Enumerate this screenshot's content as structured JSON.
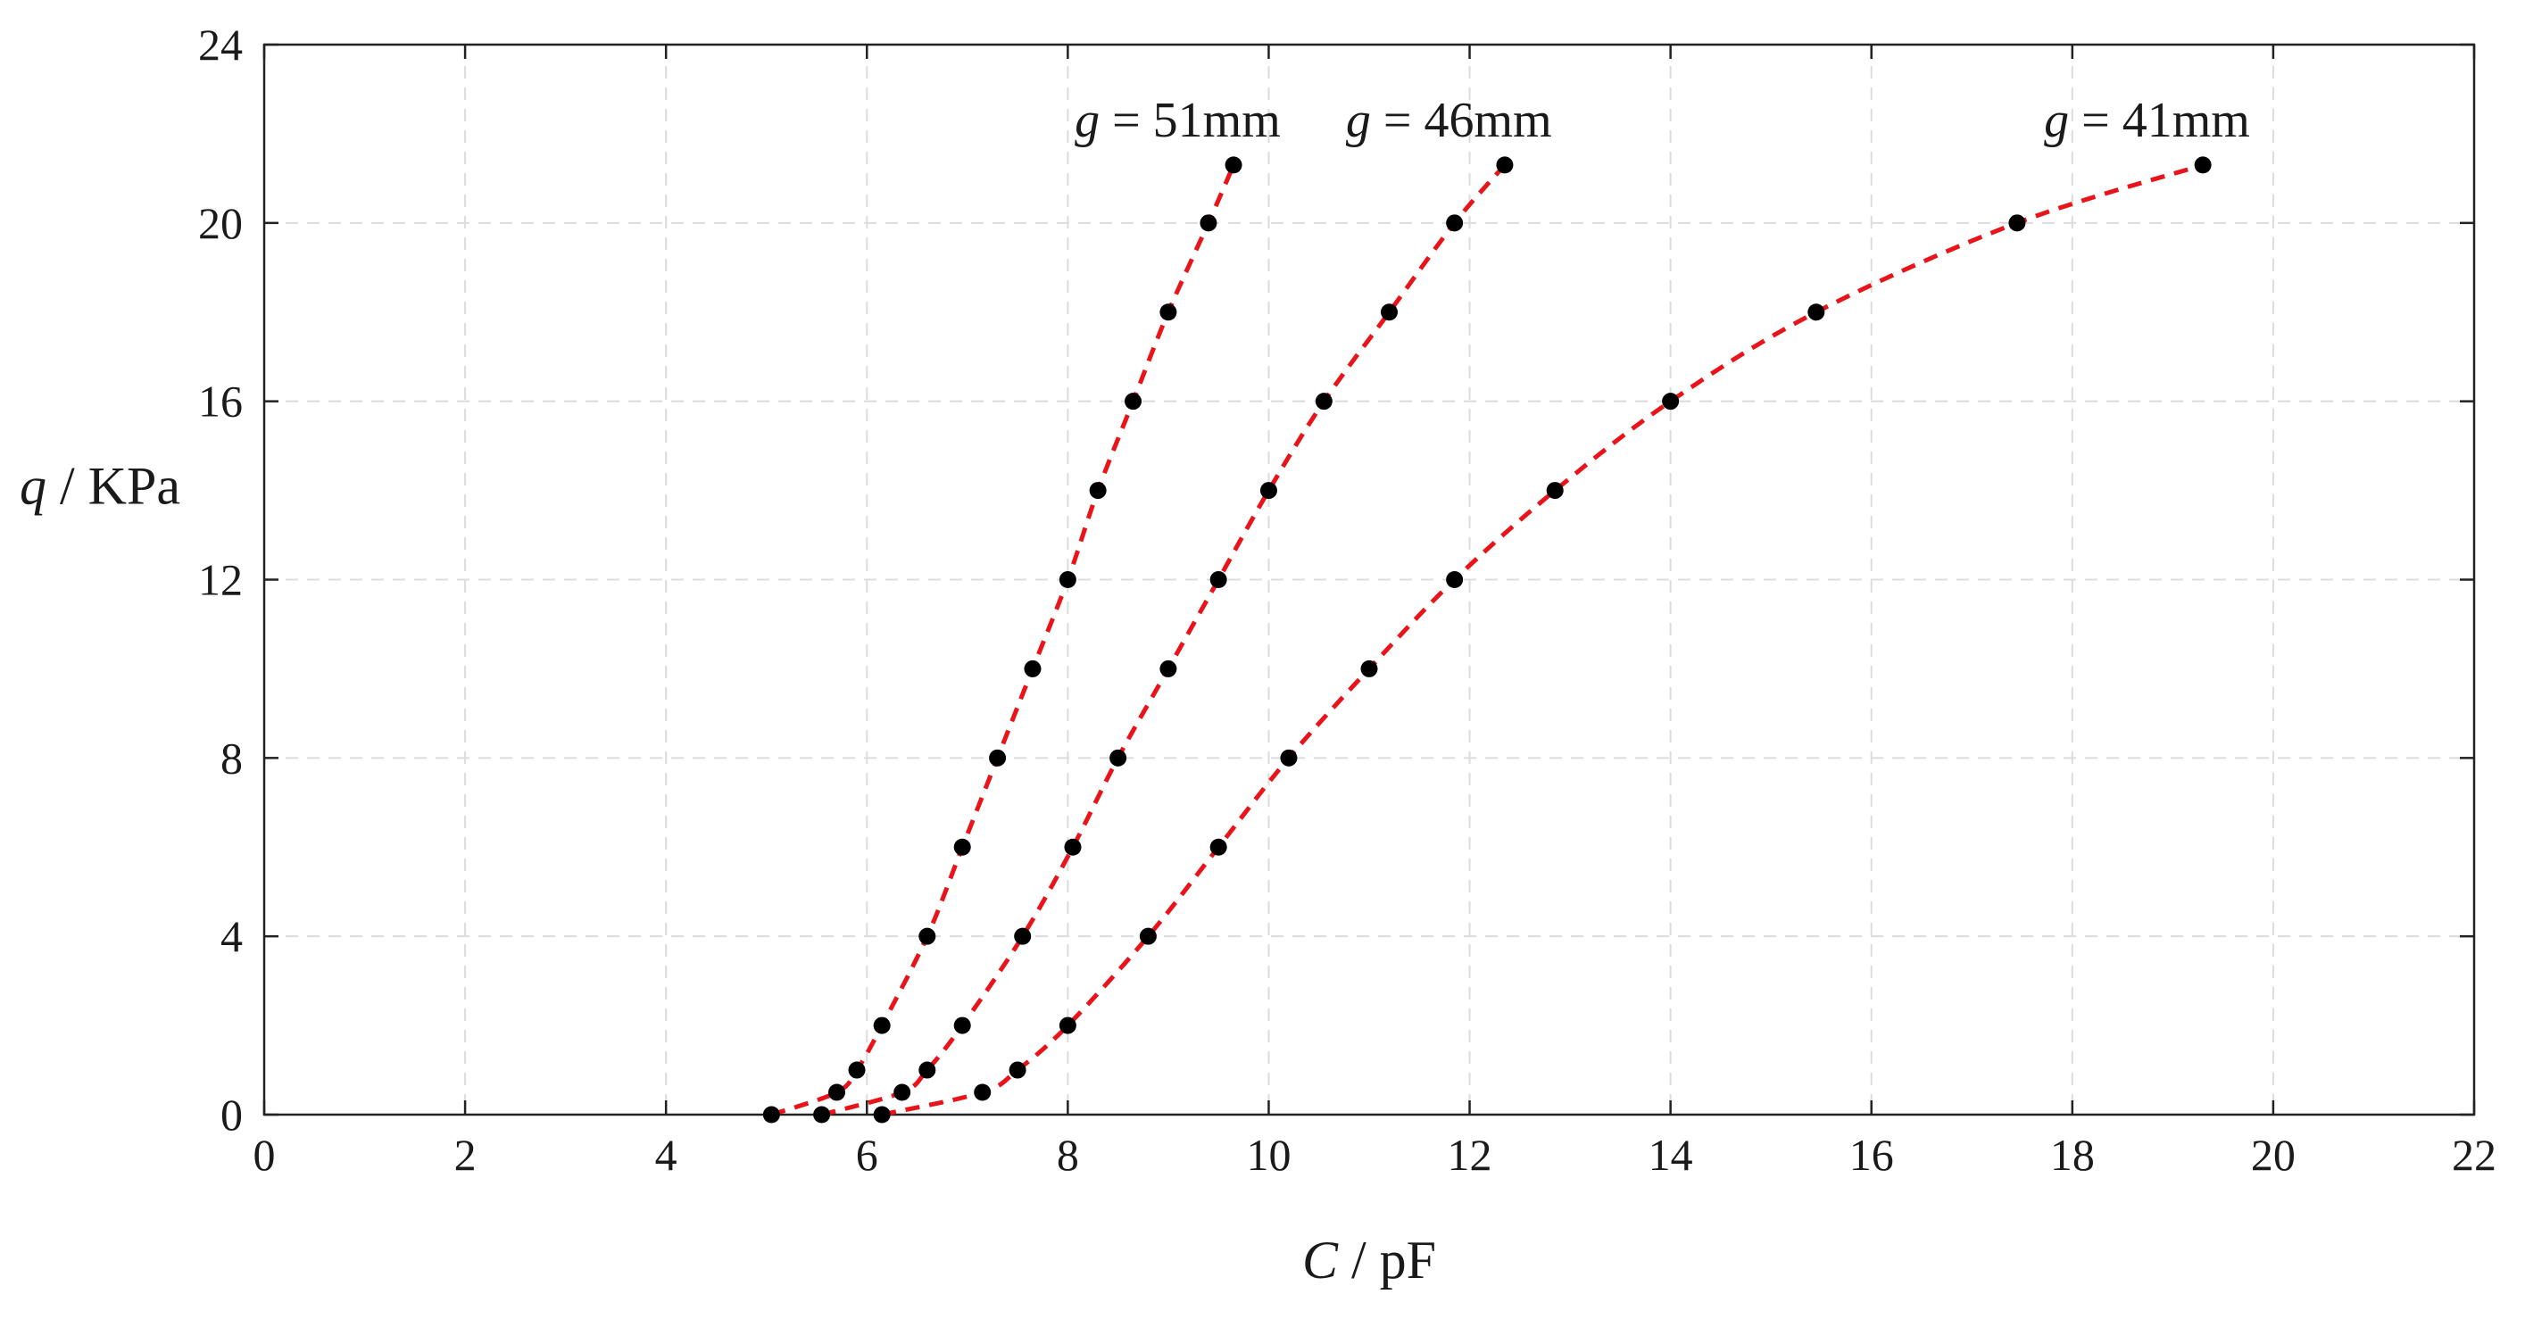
{
  "chart_data": {
    "type": "scatter",
    "xlabel": {
      "var": "C",
      "unit": "pF"
    },
    "ylabel": {
      "var": "q",
      "unit": "KPa"
    },
    "xlim": [
      0,
      22
    ],
    "ylim": [
      0,
      24
    ],
    "xticks": [
      0,
      2,
      4,
      6,
      8,
      10,
      12,
      14,
      16,
      18,
      20,
      22
    ],
    "yticks": [
      0,
      4,
      8,
      12,
      16,
      20,
      24
    ],
    "grid": true,
    "series": [
      {
        "name": "g = 51mm",
        "label_var": "g",
        "label_rest": " = 51mm",
        "color": "#e8141a",
        "x": [
          5.05,
          5.7,
          5.9,
          6.15,
          6.6,
          6.95,
          7.3,
          7.65,
          8.0,
          8.3,
          8.65,
          9.0,
          9.4,
          9.65
        ],
        "y": [
          0,
          0.5,
          1,
          2,
          4,
          6,
          8,
          10,
          12,
          14,
          16,
          18,
          20,
          21.3
        ]
      },
      {
        "name": "g = 46mm",
        "label_var": "g",
        "label_rest": " = 46mm",
        "color": "#e8141a",
        "x": [
          5.55,
          6.35,
          6.6,
          6.95,
          7.55,
          8.05,
          8.5,
          9.0,
          9.5,
          10.0,
          10.55,
          11.2,
          11.85,
          12.35
        ],
        "y": [
          0,
          0.5,
          1,
          2,
          4,
          6,
          8,
          10,
          12,
          14,
          16,
          18,
          20,
          21.3
        ]
      },
      {
        "name": "g = 41mm",
        "label_var": "g",
        "label_rest": " = 41mm",
        "color": "#e8141a",
        "x": [
          6.15,
          7.15,
          7.5,
          8.0,
          8.8,
          9.5,
          10.2,
          11.0,
          11.85,
          12.85,
          14.0,
          15.45,
          17.45,
          19.3
        ],
        "y": [
          0,
          0.5,
          1,
          2,
          4,
          6,
          8,
          10,
          12,
          14,
          16,
          18,
          20,
          21.3
        ]
      }
    ]
  }
}
